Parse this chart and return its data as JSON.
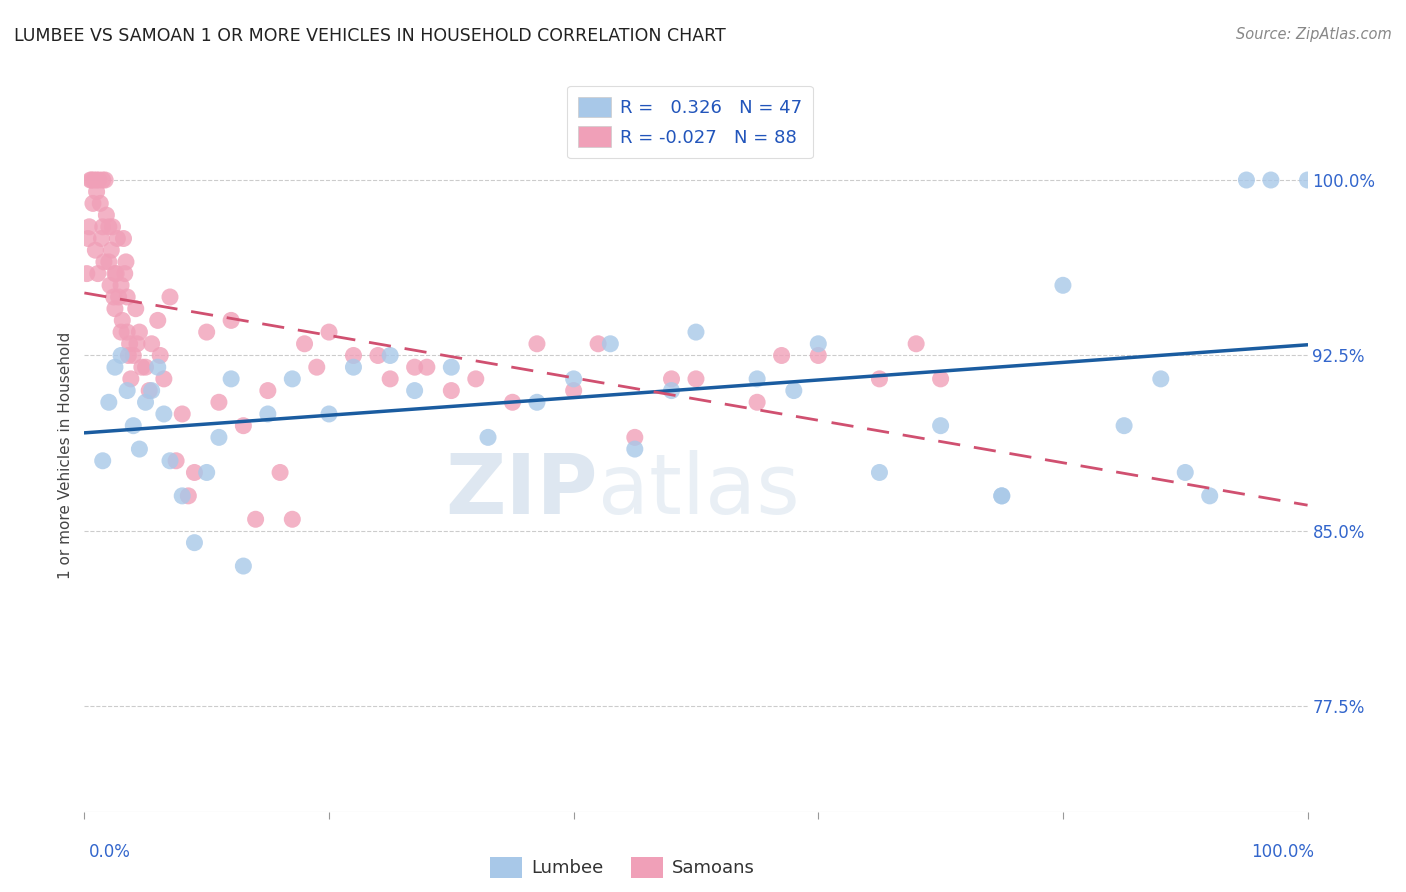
{
  "title": "LUMBEE VS SAMOAN 1 OR MORE VEHICLES IN HOUSEHOLD CORRELATION CHART",
  "source": "Source: ZipAtlas.com",
  "ylabel": "1 or more Vehicles in Household",
  "y_ticks": [
    77.5,
    85.0,
    92.5,
    100.0
  ],
  "y_tick_labels": [
    "77.5%",
    "85.0%",
    "92.5%",
    "100.0%"
  ],
  "x_range": [
    0.0,
    100.0
  ],
  "y_range": [
    73.0,
    103.5
  ],
  "lumbee_r": 0.326,
  "lumbee_n": 47,
  "samoan_r": -0.027,
  "samoan_n": 88,
  "legend_label_1": "Lumbee",
  "legend_label_2": "Samoans",
  "watermark_zip": "ZIP",
  "watermark_atlas": "atlas",
  "lumbee_color": "#a8c8e8",
  "lumbee_line_color": "#1a5ca0",
  "samoan_color": "#f0a0b8",
  "samoan_line_color": "#d05070",
  "lumbee_points_x": [
    3.0,
    3.5,
    4.0,
    4.5,
    5.0,
    5.5,
    6.0,
    6.5,
    7.0,
    8.0,
    9.0,
    10.0,
    11.0,
    12.0,
    13.0,
    15.0,
    17.0,
    20.0,
    22.0,
    25.0,
    27.0,
    30.0,
    33.0,
    37.0,
    40.0,
    43.0,
    45.0,
    48.0,
    50.0,
    55.0,
    58.0,
    60.0,
    65.0,
    70.0,
    75.0,
    80.0,
    85.0,
    88.0,
    90.0,
    92.0,
    95.0,
    97.0,
    100.0,
    1.5,
    2.0,
    2.5,
    75.0
  ],
  "lumbee_points_y": [
    92.5,
    91.0,
    89.5,
    88.5,
    90.5,
    91.0,
    92.0,
    90.0,
    88.0,
    86.5,
    84.5,
    87.5,
    89.0,
    91.5,
    83.5,
    90.0,
    91.5,
    90.0,
    92.0,
    92.5,
    91.0,
    92.0,
    89.0,
    90.5,
    91.5,
    93.0,
    88.5,
    91.0,
    93.5,
    91.5,
    91.0,
    93.0,
    87.5,
    89.5,
    86.5,
    95.5,
    89.5,
    91.5,
    87.5,
    86.5,
    100.0,
    100.0,
    100.0,
    88.0,
    90.5,
    92.0,
    86.5
  ],
  "samoan_points_x": [
    0.3,
    0.5,
    0.6,
    0.8,
    1.0,
    1.0,
    1.2,
    1.3,
    1.5,
    1.5,
    1.7,
    1.8,
    2.0,
    2.0,
    2.2,
    2.3,
    2.5,
    2.5,
    2.7,
    2.8,
    3.0,
    3.0,
    3.2,
    3.3,
    3.5,
    3.5,
    3.7,
    4.0,
    4.2,
    4.5,
    5.0,
    5.5,
    6.0,
    6.5,
    7.0,
    8.0,
    9.0,
    10.0,
    11.0,
    12.0,
    13.0,
    14.0,
    15.0,
    16.0,
    17.0,
    18.0,
    19.0,
    20.0,
    22.0,
    24.0,
    25.0,
    27.0,
    28.0,
    30.0,
    32.0,
    35.0,
    37.0,
    40.0,
    42.0,
    45.0,
    48.0,
    50.0,
    55.0,
    57.0,
    60.0,
    65.0,
    68.0,
    70.0,
    0.2,
    0.4,
    0.7,
    0.9,
    1.1,
    1.4,
    1.6,
    2.1,
    2.4,
    2.6,
    3.1,
    3.4,
    3.6,
    3.8,
    4.3,
    4.7,
    5.3,
    6.2,
    7.5,
    8.5
  ],
  "samoan_points_y": [
    97.5,
    100.0,
    100.0,
    100.0,
    100.0,
    99.5,
    100.0,
    99.0,
    100.0,
    98.0,
    100.0,
    98.5,
    98.0,
    96.5,
    97.0,
    98.0,
    96.0,
    94.5,
    97.5,
    95.0,
    95.5,
    93.5,
    97.5,
    96.0,
    95.0,
    93.5,
    93.0,
    92.5,
    94.5,
    93.5,
    92.0,
    93.0,
    94.0,
    91.5,
    95.0,
    90.0,
    87.5,
    93.5,
    90.5,
    94.0,
    89.5,
    85.5,
    91.0,
    87.5,
    85.5,
    93.0,
    92.0,
    93.5,
    92.5,
    92.5,
    91.5,
    92.0,
    92.0,
    91.0,
    91.5,
    90.5,
    93.0,
    91.0,
    93.0,
    89.0,
    91.5,
    91.5,
    90.5,
    92.5,
    92.5,
    91.5,
    93.0,
    91.5,
    96.0,
    98.0,
    99.0,
    97.0,
    96.0,
    97.5,
    96.5,
    95.5,
    95.0,
    96.0,
    94.0,
    96.5,
    92.5,
    91.5,
    93.0,
    92.0,
    91.0,
    92.5,
    88.0,
    86.5
  ]
}
